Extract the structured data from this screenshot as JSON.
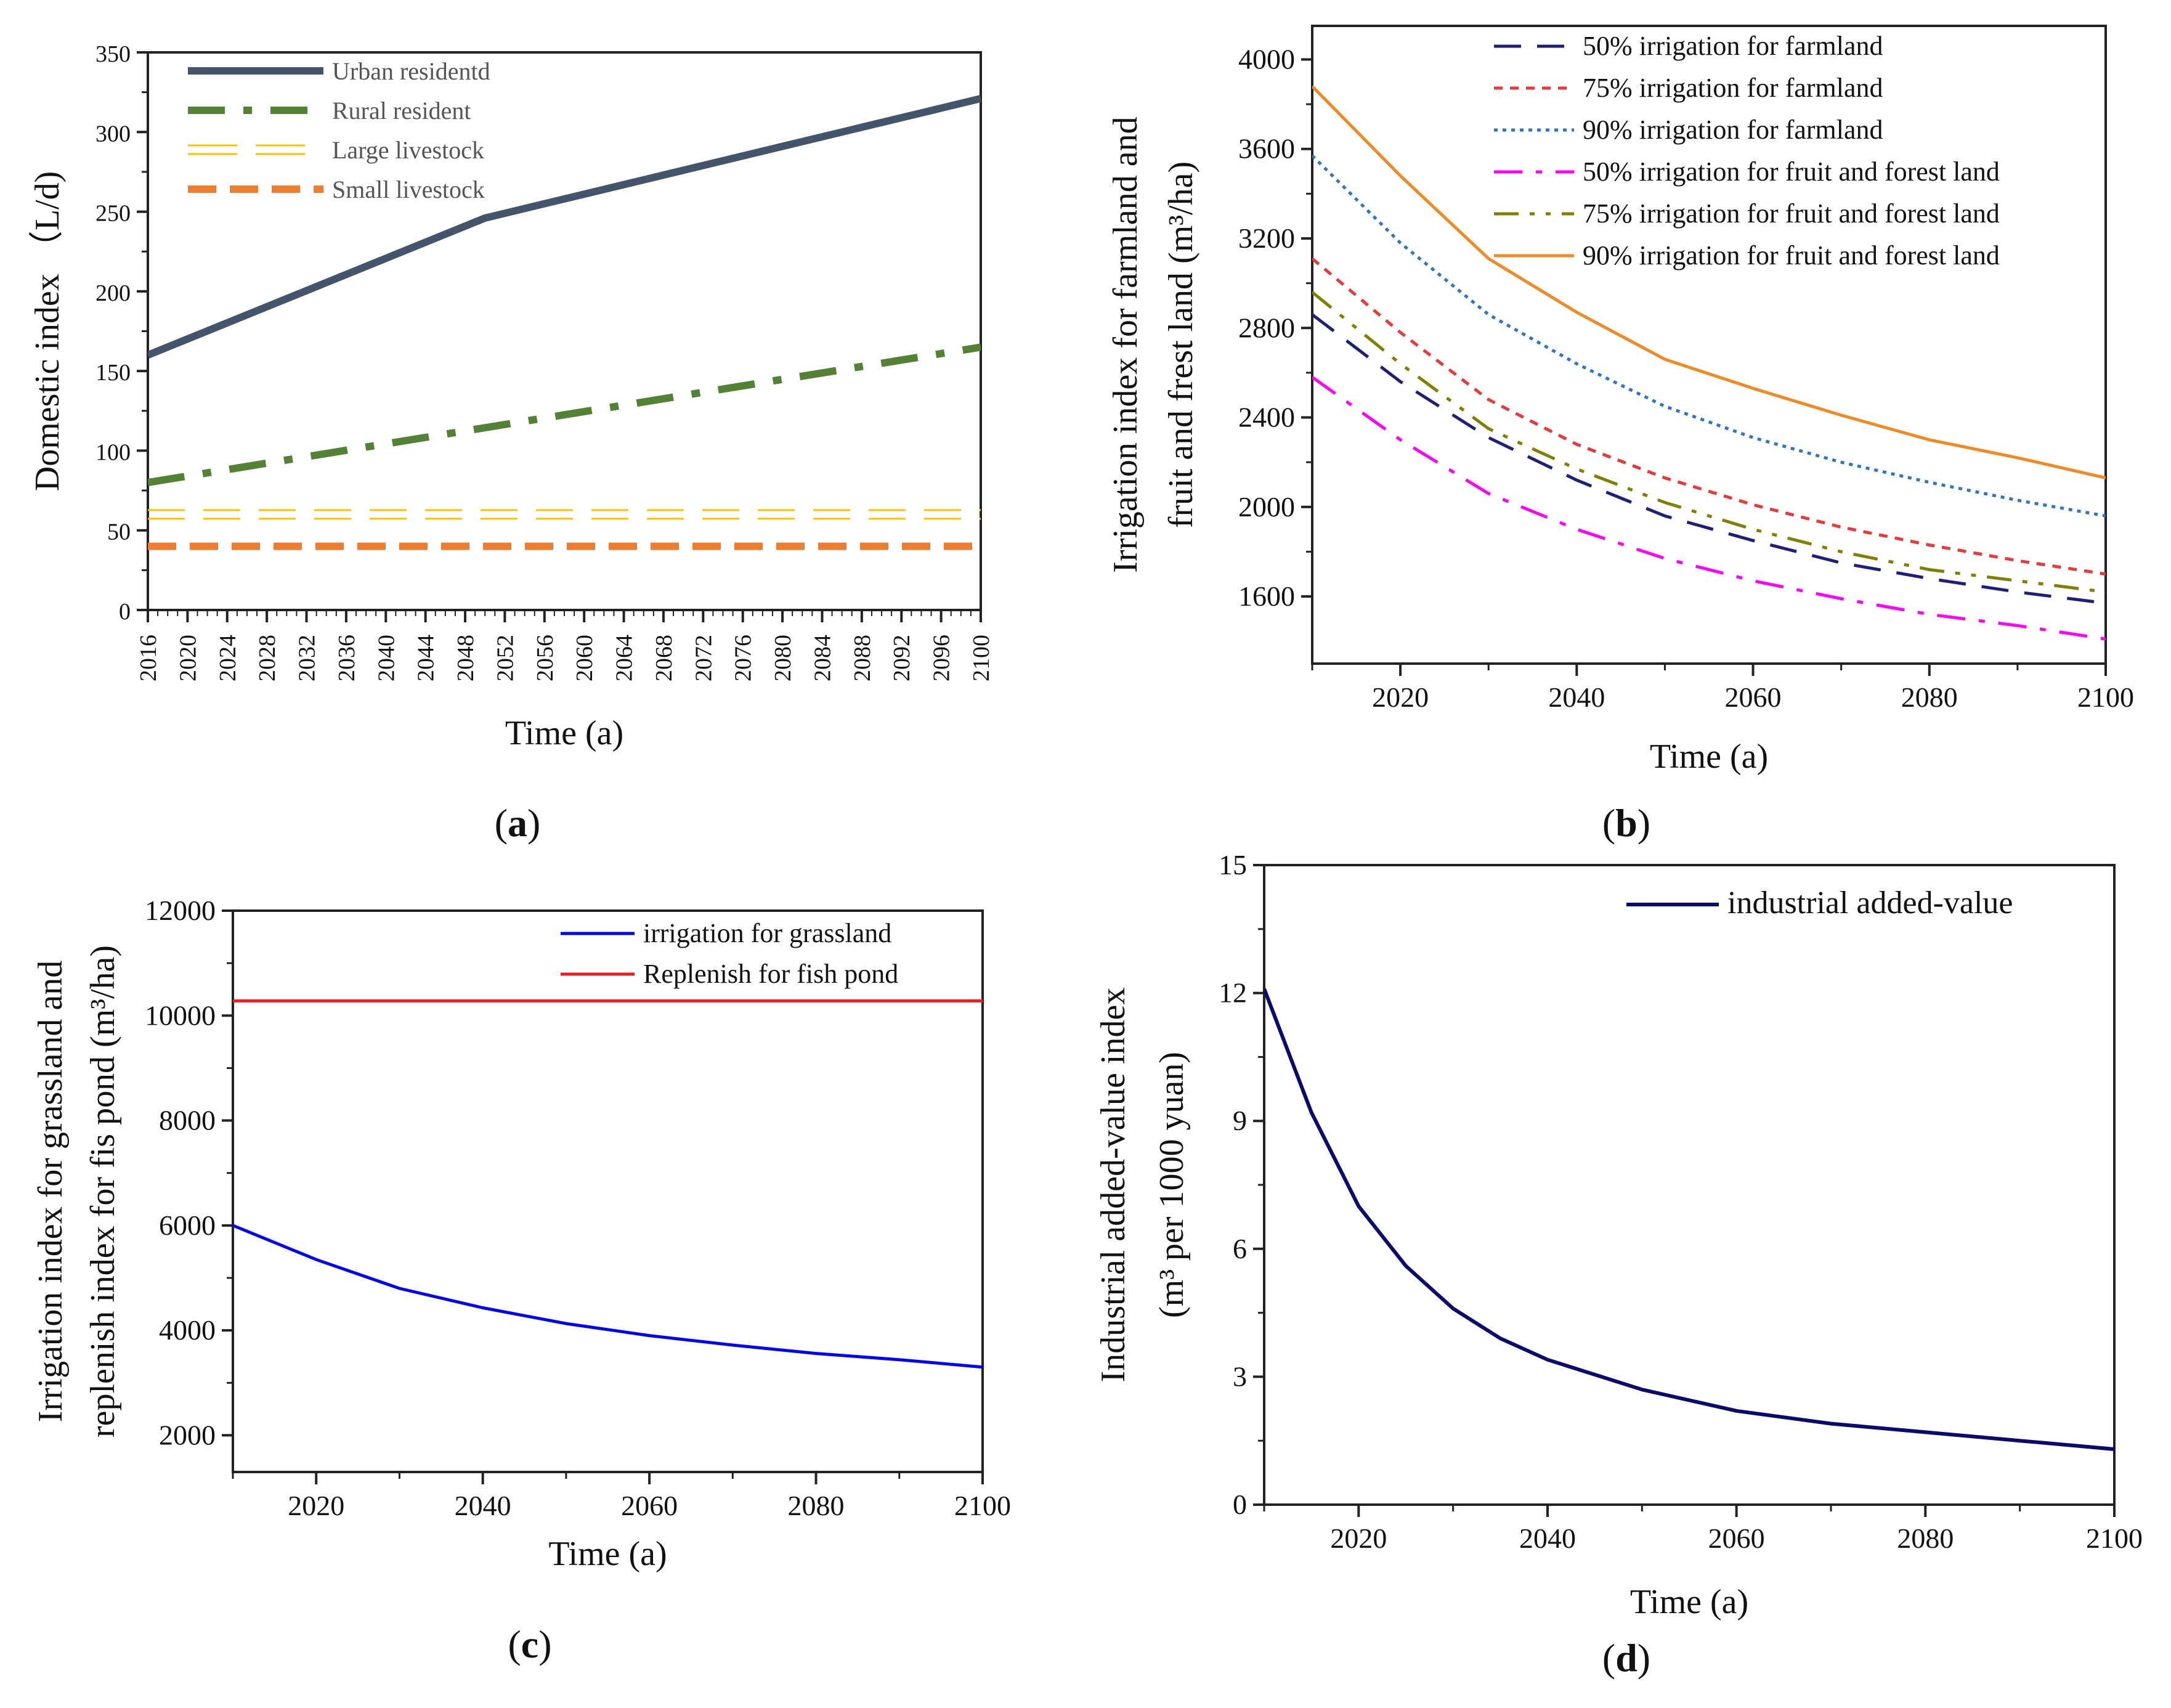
{
  "chart_data": [
    {
      "id": "a",
      "type": "line",
      "panel_label": "a",
      "xlabel": "Time (a)",
      "ylabel": "Domestic index （L/d)",
      "xlim": [
        2016,
        2100
      ],
      "ylim": [
        0,
        350
      ],
      "yticks": [
        0,
        50,
        100,
        150,
        200,
        250,
        300,
        350
      ],
      "xticks": [
        2016,
        2020,
        2024,
        2028,
        2032,
        2036,
        2040,
        2044,
        2048,
        2052,
        2056,
        2060,
        2064,
        2068,
        2072,
        2076,
        2080,
        2084,
        2088,
        2092,
        2096,
        2100
      ],
      "legend_position": "top-left",
      "series": [
        {
          "name": "Urban residentd",
          "color": "#44546a",
          "style": "solid",
          "x": [
            2016,
            2050,
            2100
          ],
          "y": [
            160,
            246,
            321
          ]
        },
        {
          "name": "Rural resident",
          "color": "#548235",
          "style": "dashdot",
          "x": [
            2016,
            2100
          ],
          "y": [
            80,
            165
          ]
        },
        {
          "name": "Large livestock",
          "color": "#ffc000",
          "style": "double",
          "x": [
            2016,
            2100
          ],
          "y": [
            60,
            60
          ]
        },
        {
          "name": "Small livestock",
          "color": "#ed7d31",
          "style": "dashed",
          "x": [
            2016,
            2100
          ],
          "y": [
            40,
            40
          ]
        }
      ]
    },
    {
      "id": "b",
      "type": "line",
      "panel_label": "b",
      "xlabel": "Time (a)",
      "ylabel_lines": [
        "Irrigation index for farmland and",
        "fruit and frest land (m³/ha)"
      ],
      "xlim": [
        2010,
        2100
      ],
      "ylim": [
        1300,
        4150
      ],
      "yticks": [
        1600,
        2000,
        2400,
        2800,
        3200,
        3600,
        4000
      ],
      "xticks": [
        2020,
        2040,
        2060,
        2080,
        2100
      ],
      "legend_position": "top-right",
      "series": [
        {
          "name": "50% irrigation for farmland",
          "color": "#1f1f7a",
          "style": "dashed",
          "x": [
            2010,
            2020,
            2030,
            2040,
            2050,
            2060,
            2070,
            2080,
            2090,
            2100
          ],
          "y": [
            2860,
            2560,
            2310,
            2120,
            1960,
            1850,
            1750,
            1680,
            1620,
            1570
          ]
        },
        {
          "name": "75% irrigation for farmland",
          "color": "#e83a3a",
          "style": "dotted",
          "x": [
            2010,
            2020,
            2030,
            2040,
            2050,
            2060,
            2070,
            2080,
            2090,
            2100
          ],
          "y": [
            3110,
            2780,
            2480,
            2280,
            2130,
            2010,
            1910,
            1830,
            1760,
            1700
          ]
        },
        {
          "name": "90% irrigation for farmland",
          "color": "#2e75c6",
          "style": "fine-dotted",
          "x": [
            2010,
            2020,
            2030,
            2040,
            2050,
            2060,
            2070,
            2080,
            2090,
            2100
          ],
          "y": [
            3570,
            3180,
            2860,
            2640,
            2450,
            2310,
            2200,
            2110,
            2030,
            1960
          ]
        },
        {
          "name": "50% irrigation for fruit and forest land",
          "color": "#ff00ff",
          "style": "dashdot",
          "x": [
            2010,
            2020,
            2030,
            2040,
            2050,
            2060,
            2070,
            2080,
            2090,
            2100
          ],
          "y": [
            2580,
            2300,
            2060,
            1900,
            1770,
            1670,
            1590,
            1520,
            1470,
            1410
          ]
        },
        {
          "name": "75% irrigation for fruit and forest land",
          "color": "#808000",
          "style": "dashdotdot",
          "x": [
            2010,
            2020,
            2030,
            2040,
            2050,
            2060,
            2070,
            2080,
            2090,
            2100
          ],
          "y": [
            2960,
            2640,
            2350,
            2170,
            2020,
            1900,
            1800,
            1720,
            1670,
            1620
          ]
        },
        {
          "name": "90% irrigation for fruit and forest land",
          "color": "#f08a24",
          "style": "solid",
          "x": [
            2010,
            2020,
            2030,
            2040,
            2050,
            2060,
            2070,
            2080,
            2090,
            2100
          ],
          "y": [
            3880,
            3480,
            3110,
            2870,
            2660,
            2530,
            2410,
            2300,
            2220,
            2130
          ]
        }
      ]
    },
    {
      "id": "c",
      "type": "line",
      "panel_label": "c",
      "xlabel": "Time (a)",
      "ylabel_lines": [
        "Irrigation index for grassland and",
        "replenish index for fis pond (m³/ha)"
      ],
      "xlim": [
        2010,
        2100
      ],
      "ylim": [
        1300,
        12000
      ],
      "yticks": [
        2000,
        4000,
        6000,
        8000,
        10000,
        12000
      ],
      "xticks": [
        2020,
        2040,
        2060,
        2080,
        2100
      ],
      "legend_position": "top-right",
      "series": [
        {
          "name": "irrigation for grassland",
          "color": "#0000ff",
          "style": "solid",
          "x": [
            2010,
            2020,
            2030,
            2040,
            2050,
            2060,
            2070,
            2080,
            2090,
            2100
          ],
          "y": [
            6000,
            5350,
            4800,
            4430,
            4130,
            3900,
            3720,
            3560,
            3440,
            3300
          ]
        },
        {
          "name": "Replenish for fish pond",
          "color": "#e62020",
          "style": "solid",
          "x": [
            2010,
            2100
          ],
          "y": [
            10280,
            10280
          ]
        }
      ]
    },
    {
      "id": "d",
      "type": "line",
      "panel_label": "d",
      "xlabel": "Time (a)",
      "ylabel_lines": [
        "Industrial added-value index",
        "(m³ per 1000 yuan)"
      ],
      "xlim": [
        2010,
        2100
      ],
      "ylim": [
        0,
        15
      ],
      "yticks": [
        0,
        3,
        6,
        9,
        12,
        15
      ],
      "xticks": [
        2020,
        2040,
        2060,
        2080,
        2100
      ],
      "legend_position": "top-right",
      "series": [
        {
          "name": "industrial added-value",
          "color": "#0a0a6e",
          "style": "solid",
          "x": [
            2010,
            2015,
            2020,
            2025,
            2030,
            2035,
            2040,
            2050,
            2060,
            2070,
            2080,
            2090,
            2100
          ],
          "y": [
            12.1,
            9.2,
            7.0,
            5.6,
            4.6,
            3.9,
            3.4,
            2.7,
            2.2,
            1.9,
            1.7,
            1.5,
            1.3
          ]
        }
      ]
    }
  ]
}
